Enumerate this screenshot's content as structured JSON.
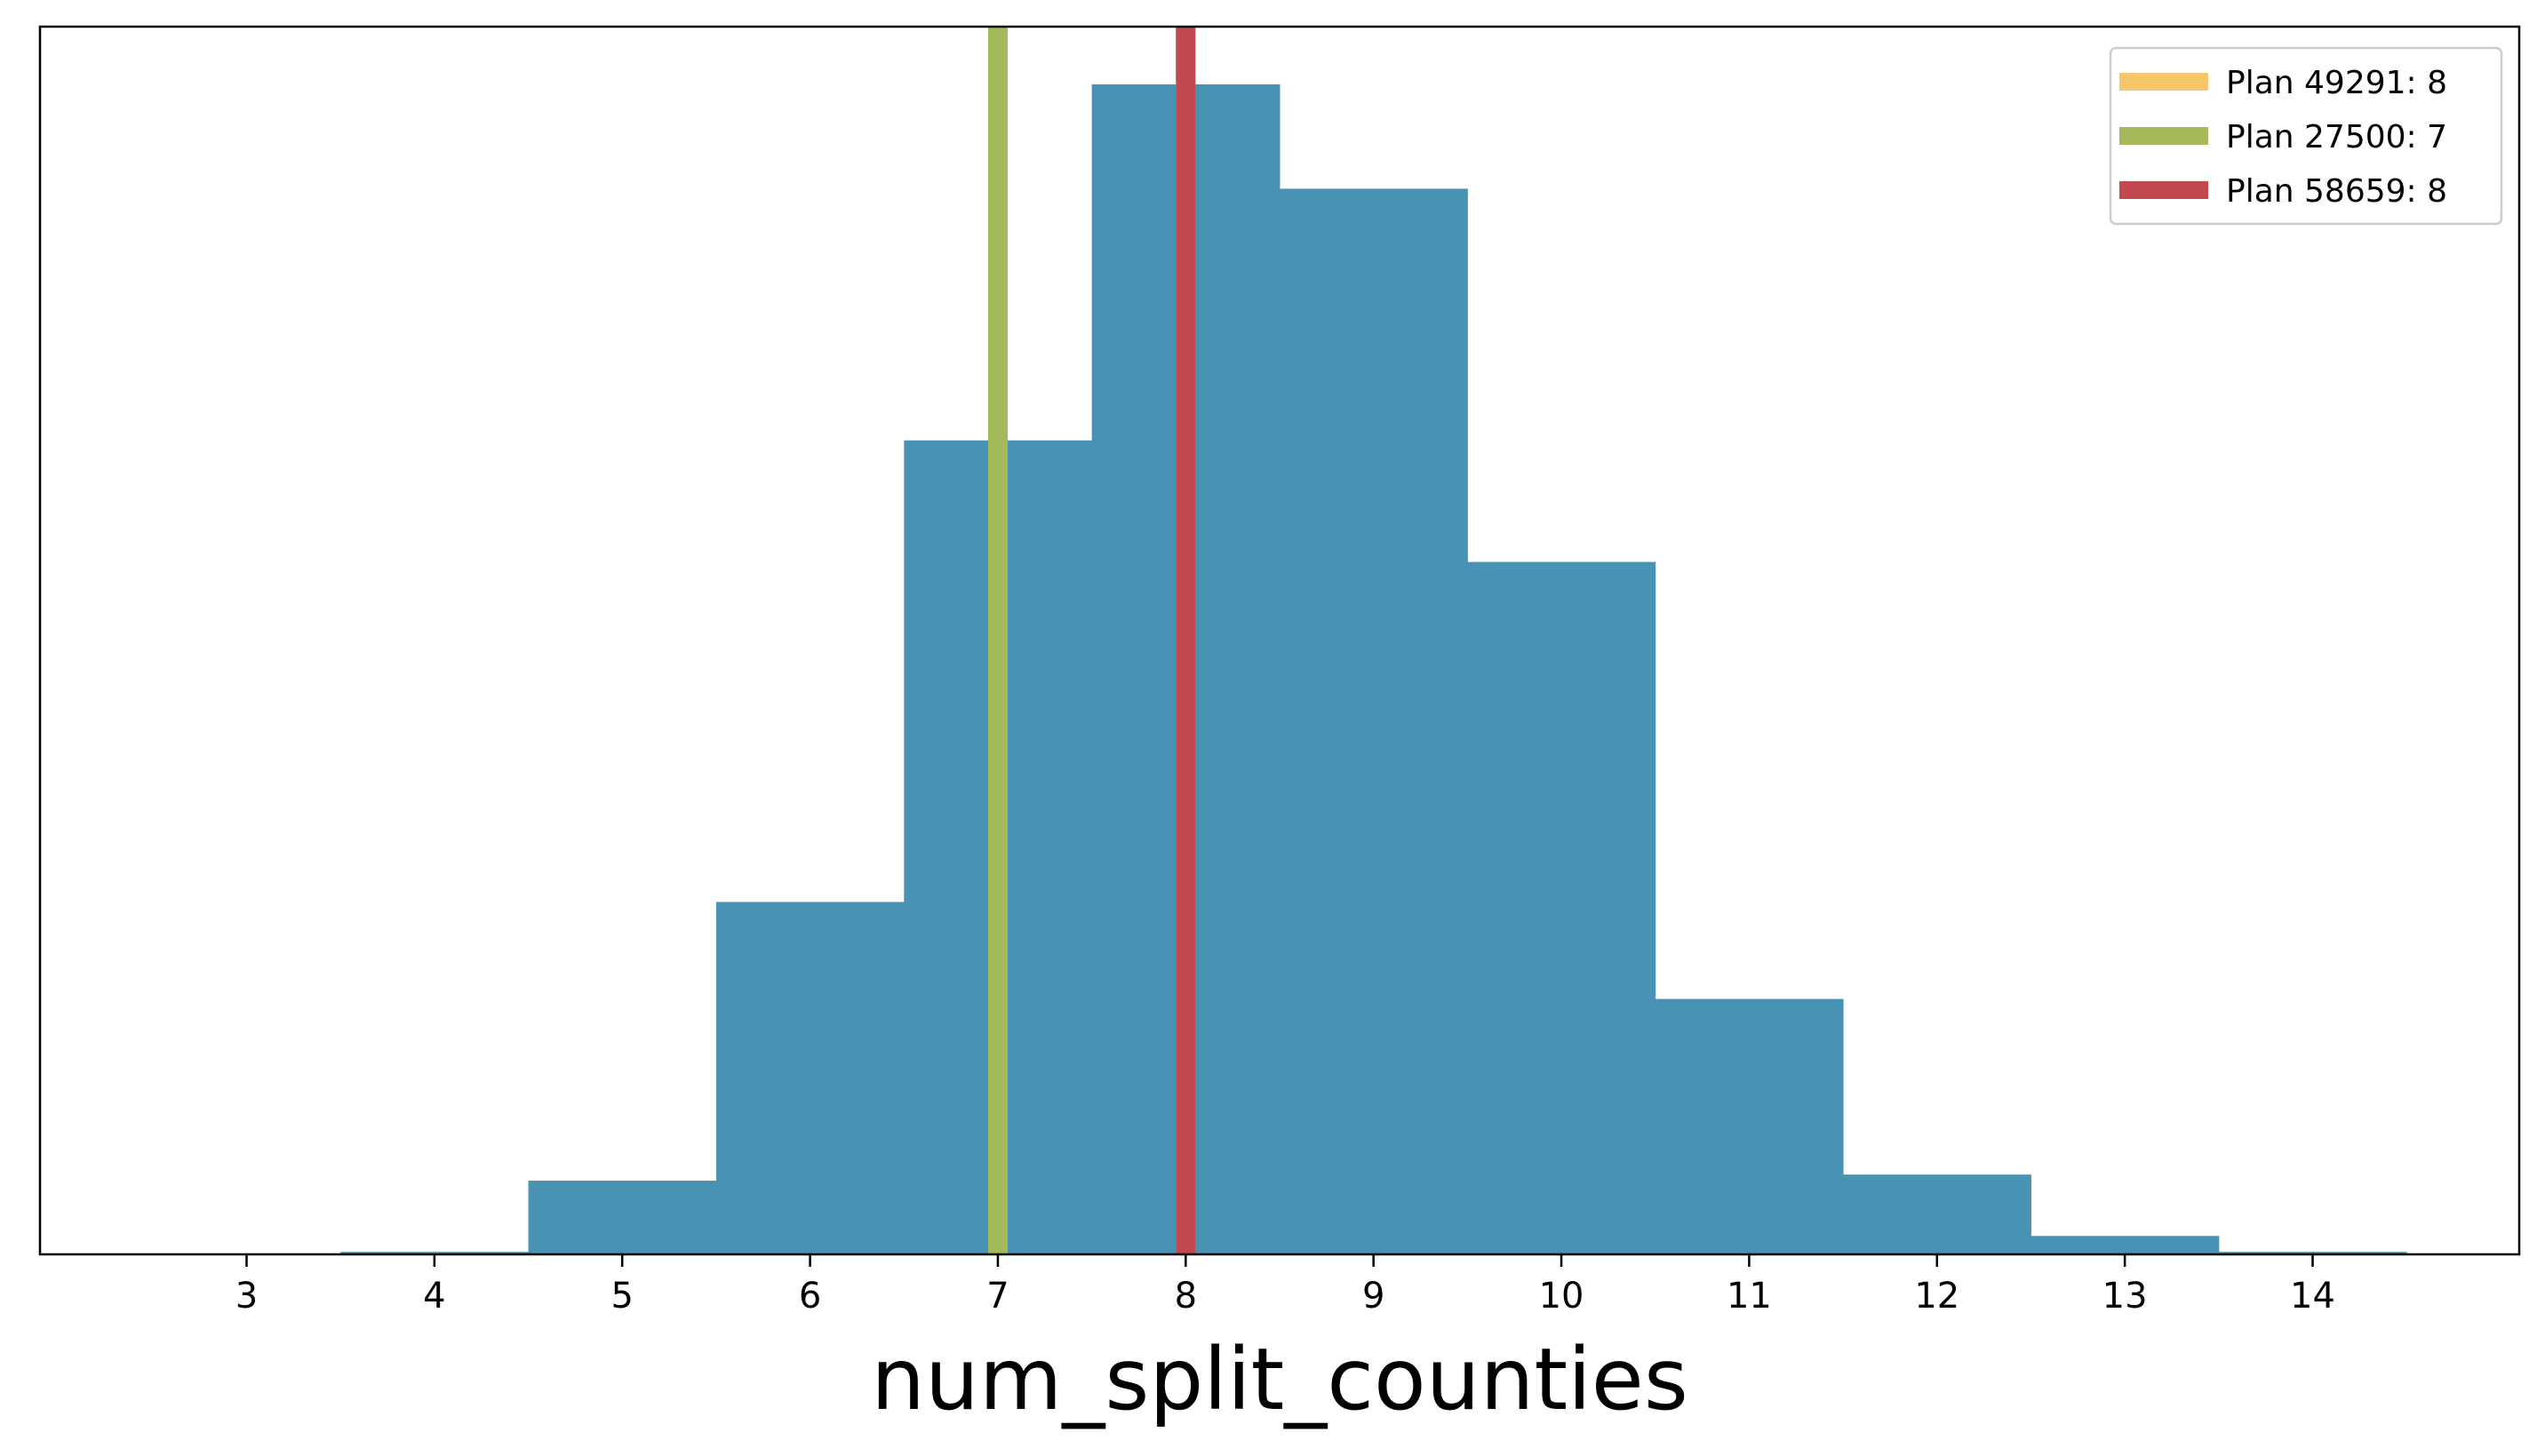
{
  "chart_data": {
    "type": "bar",
    "title": "",
    "xlabel": "num_split_counties",
    "ylabel": "",
    "xlim": [
      1.9,
      15.1
    ],
    "ylim": [
      0,
      1000
    ],
    "x_ticks": [
      "3",
      "4",
      "5",
      "6",
      "7",
      "8",
      "9",
      "10",
      "11",
      "12",
      "13",
      "14"
    ],
    "y_ticks_visible": false,
    "grid": false,
    "histogram": {
      "color": "#4893b4",
      "bin_edges": [
        3.5,
        4.5,
        5.5,
        6.5,
        7.5,
        8.5,
        9.5,
        10.5,
        11.5,
        12.5,
        13.5,
        14.5
      ],
      "counts": [
        2,
        60,
        287,
        663,
        953,
        868,
        564,
        208,
        65,
        15,
        2
      ]
    },
    "reference_lines": [
      {
        "label": "Plan 49291: 8",
        "x": 8,
        "color": "#f5c76a"
      },
      {
        "label": "Plan 27500: 7",
        "x": 7,
        "color": "#a4b95a"
      },
      {
        "label": "Plan 58659: 8",
        "x": 8,
        "color": "#c3484f"
      }
    ],
    "legend": {
      "position": "top-right"
    }
  }
}
